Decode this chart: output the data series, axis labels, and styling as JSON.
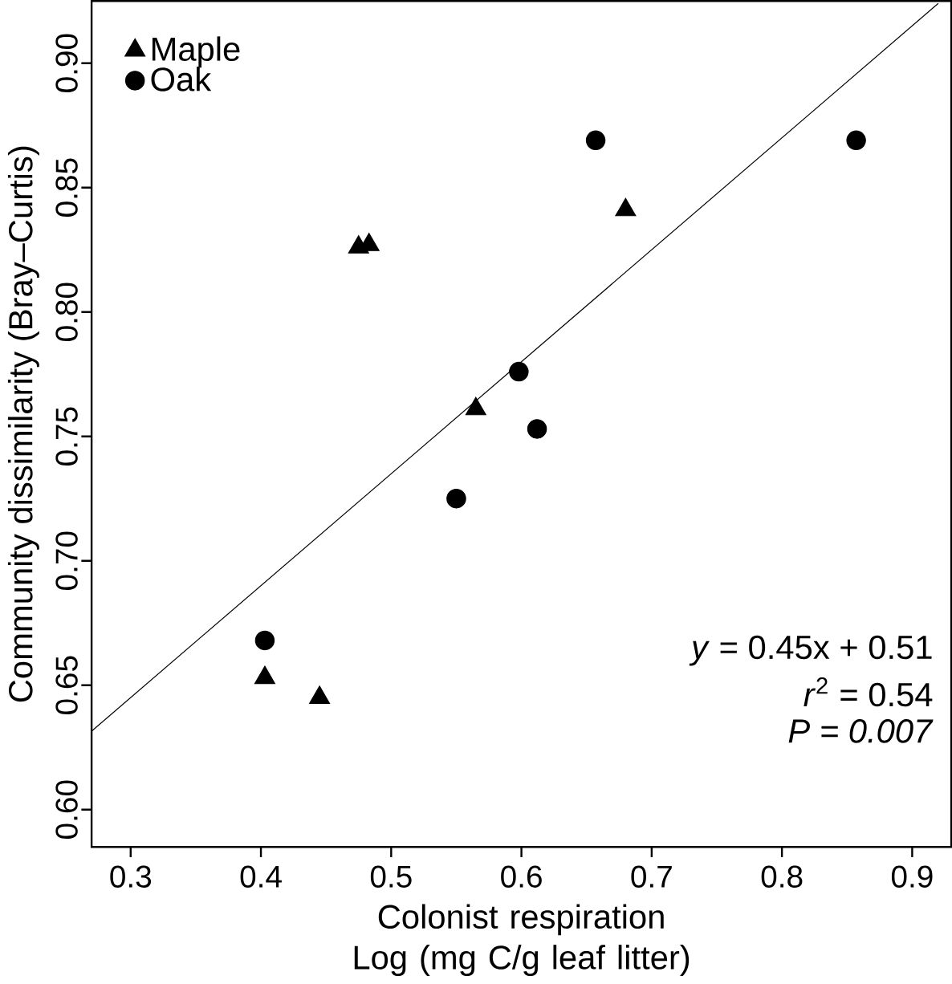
{
  "chart_data": {
    "type": "scatter",
    "xlabel": "Colonist respiration Log (mg C/g leaf litter)",
    "ylabel": "Community dissimilarity (Bray–Curtis)",
    "xlim": [
      0.27,
      0.93
    ],
    "ylim": [
      0.585,
      0.925
    ],
    "xticks": [
      0.3,
      0.4,
      0.5,
      0.6,
      0.7,
      0.8,
      0.9
    ],
    "yticks": [
      {
        "value": 0.6,
        "label": "0.60"
      },
      {
        "value": 0.65,
        "label": "0.65"
      },
      {
        "value": 0.7,
        "label": "0.70"
      },
      {
        "value": 0.75,
        "label": "0.75"
      },
      {
        "value": 0.8,
        "label": "0.80"
      },
      {
        "value": 0.85,
        "label": "0.85"
      },
      {
        "value": 0.9,
        "label": "0.90"
      }
    ],
    "legend": "top left",
    "grid": false,
    "series": [
      {
        "name": "Maple",
        "color": "#000000",
        "marker": "triangle",
        "x": [
          0.475,
          0.483,
          0.68,
          0.565,
          0.403,
          0.445
        ],
        "values": [
          0.826,
          0.827,
          0.841,
          0.761,
          0.653,
          0.645
        ]
      },
      {
        "name": "Oak",
        "color": "#000000",
        "marker": "circle",
        "x": [
          0.403,
          0.55,
          0.598,
          0.612,
          0.657,
          0.857
        ],
        "values": [
          0.668,
          0.725,
          0.776,
          0.753,
          0.869,
          0.869
        ]
      },
      {
        "type": "line",
        "color": "#000000",
        "x": [
          0.27,
          0.92
        ],
        "values": [
          0.6315,
          0.924
        ]
      }
    ],
    "annotations": [
      "*y* = 0.45x + 0.51",
      "*r*$^{2}$ = 0.54",
      "*P = 0.007*"
    ]
  }
}
